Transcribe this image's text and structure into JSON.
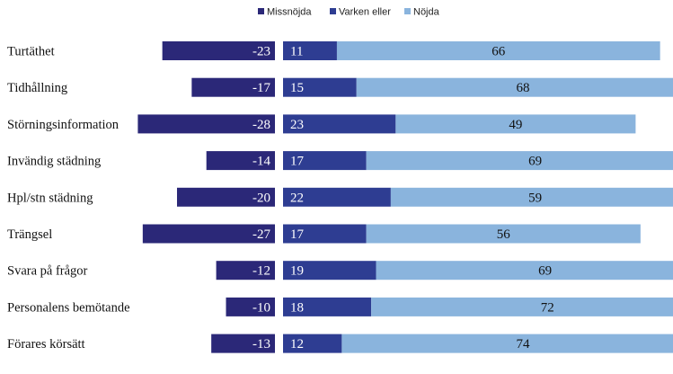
{
  "chart_data": {
    "type": "bar",
    "orientation": "horizontal",
    "stacked": true,
    "title": "",
    "xlabel": "",
    "ylabel": "",
    "legend_position": "top",
    "grid": false,
    "categories": [
      "Turtäthet",
      "Tidhållning",
      "Störningsinformation",
      "Invändig städning",
      "Hpl/stn städning",
      "Trängsel",
      "Svara på frågor",
      "Personalens bemötande",
      "Förares körsätt"
    ],
    "series": [
      {
        "name": "Missnöjda",
        "color": "#2b2878",
        "values": [
          -23,
          -17,
          -28,
          -14,
          -20,
          -27,
          -12,
          -10,
          -13
        ]
      },
      {
        "name": "Varken eller",
        "color": "#2e3d92",
        "values": [
          11,
          15,
          23,
          17,
          22,
          17,
          19,
          18,
          12
        ]
      },
      {
        "name": "Nöjda",
        "color": "#8ab4dd",
        "values": [
          66,
          68,
          49,
          69,
          59,
          56,
          69,
          72,
          74
        ]
      }
    ]
  }
}
